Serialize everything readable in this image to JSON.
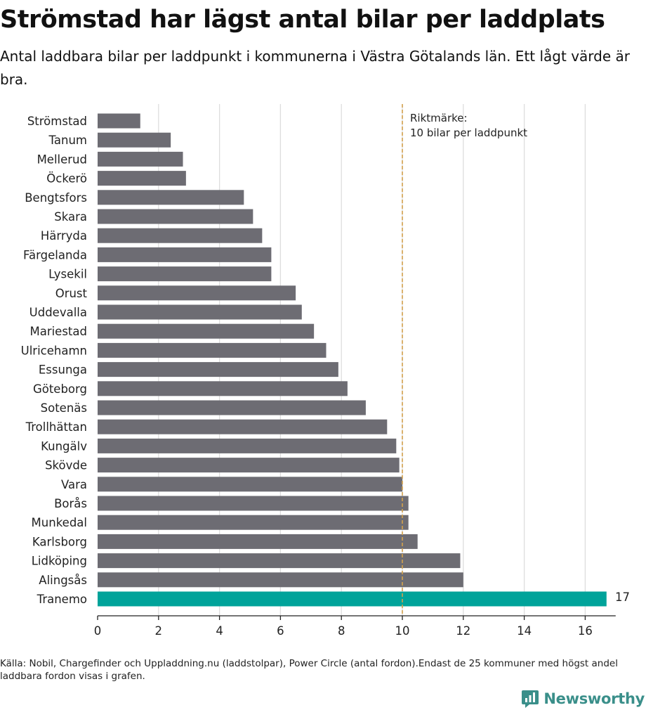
{
  "header": {
    "title": "Strömstad har lägst antal bilar per laddplats",
    "subtitle": "Antal laddbara bilar per laddpunkt i kommunerna i Västra Götalands län. Ett lågt värde är bra."
  },
  "footer": {
    "source": "Källa: Nobil, Chargefinder och Uppladdning.nu (laddstolpar), Power Circle (antal fordon).Endast de 25 kommuner med högst andel laddbara fordon visas i grafen.",
    "logo_text": "Newsworthy"
  },
  "colors": {
    "bar": "#6d6c73",
    "highlight": "#00a39a",
    "reference_line": "#d4a24c",
    "grid": "#dddddd"
  },
  "chart_data": {
    "type": "bar",
    "orientation": "horizontal",
    "title": "Strömstad har lägst antal bilar per laddplats",
    "subtitle": "Antal laddbara bilar per laddpunkt i kommunerna i Västra Götalands län. Ett lågt värde är bra.",
    "xlabel": "",
    "ylabel": "",
    "xlim": [
      0,
      17
    ],
    "ticks": [
      0,
      2,
      4,
      6,
      8,
      10,
      12,
      14,
      16
    ],
    "grid": "vertical",
    "categories": [
      "Strömstad",
      "Tanum",
      "Mellerud",
      "Öckerö",
      "Bengtsfors",
      "Skara",
      "Härryda",
      "Färgelanda",
      "Lysekil",
      "Orust",
      "Uddevalla",
      "Mariestad",
      "Ulricehamn",
      "Essunga",
      "Göteborg",
      "Sotenäs",
      "Trollhättan",
      "Kungälv",
      "Skövde",
      "Vara",
      "Borås",
      "Munkedal",
      "Karlsborg",
      "Lidköping",
      "Alingsås",
      "Tranemo"
    ],
    "values": [
      1.4,
      2.4,
      2.8,
      2.9,
      4.8,
      5.1,
      5.4,
      5.7,
      5.7,
      6.5,
      6.7,
      7.1,
      7.5,
      7.9,
      8.2,
      8.8,
      9.5,
      9.8,
      9.9,
      10.0,
      10.2,
      10.2,
      10.5,
      11.9,
      12.0,
      16.7
    ],
    "highlight": {
      "category": "Tranemo",
      "label": "17"
    },
    "reference_line": {
      "value": 10,
      "label_line1": "Riktmärke:",
      "label_line2": "10 bilar per laddpunkt"
    }
  }
}
